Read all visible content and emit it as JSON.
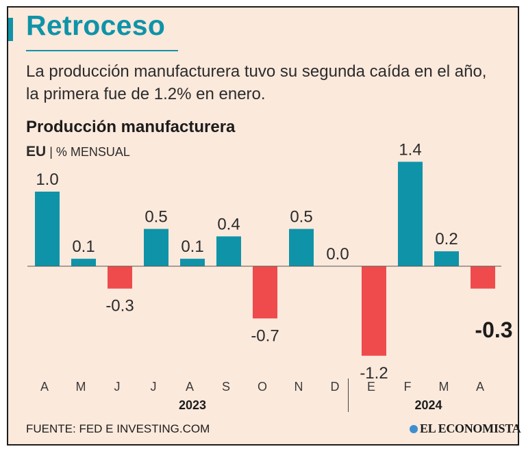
{
  "header": {
    "title": "Retroceso",
    "subtitle": "La producción manufacturera tuvo su segunda caída en el año, la primera fue de 1.2% en enero."
  },
  "chart_heading": {
    "title": "Producción manufacturera",
    "country": "EU",
    "separator": "|",
    "unit": "% MENSUAL"
  },
  "footer": {
    "source": "FUENTE: FED E INVESTING.COM",
    "brand": "EL ECONOMISTA"
  },
  "colors": {
    "positive": "#0f93a8",
    "negative": "#ef4b4d",
    "text": "#1c1c1c"
  },
  "chart_data": {
    "type": "bar",
    "title": "Producción manufacturera",
    "ylabel": "% MENSUAL",
    "categories": [
      "A",
      "M",
      "J",
      "J",
      "A",
      "S",
      "O",
      "N",
      "D",
      "E",
      "F",
      "M",
      "A"
    ],
    "values": [
      1.0,
      0.1,
      -0.3,
      0.5,
      0.1,
      0.4,
      -0.7,
      0.5,
      0.0,
      -1.2,
      1.4,
      0.2,
      -0.3
    ],
    "labels": [
      "1.0",
      "0.1",
      "-0.3",
      "0.5",
      "0.1",
      "0.4",
      "-0.7",
      "0.5",
      "0.0",
      "-1.2",
      "1.4",
      "0.2",
      "-0.3"
    ],
    "year_groups": [
      {
        "label": "2023",
        "start": 0,
        "end": 8
      },
      {
        "label": "2024",
        "start": 9,
        "end": 12
      }
    ],
    "highlight_last": true,
    "ylim": [
      -1.2,
      1.4
    ],
    "grid": false
  }
}
